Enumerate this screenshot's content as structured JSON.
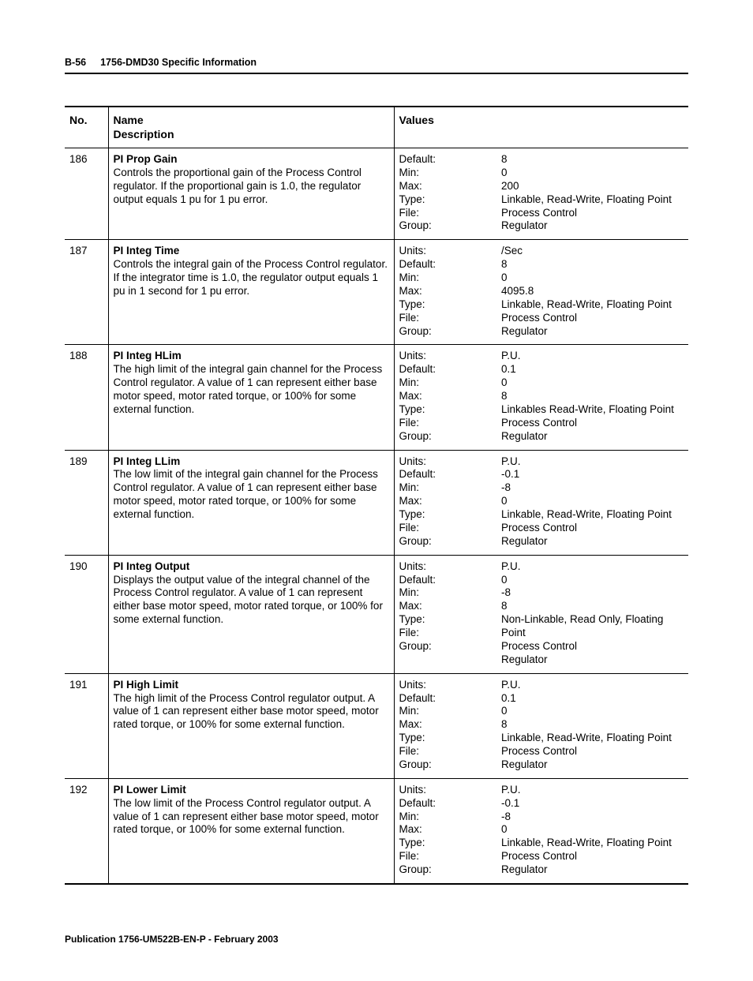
{
  "header": {
    "page_ref": "B-56",
    "section_title": "1756-DMD30 Specific Information"
  },
  "table": {
    "columns": {
      "no": "No.",
      "name": "Name",
      "name_sub": "Description",
      "values": "Values"
    },
    "rows": [
      {
        "no": "186",
        "name": "PI Prop Gain",
        "desc": "Controls the proportional gain of the Process Control regulator. If the proportional gain is 1.0, the regulator output equals 1 pu for 1 pu error.",
        "kv": [
          [
            "Default:",
            "8"
          ],
          [
            "Min:",
            "0"
          ],
          [
            "Max:",
            "200"
          ],
          [
            "Type:",
            "Linkable, Read-Write,  Floating Point"
          ],
          [
            "File:",
            "Process Control"
          ],
          [
            "Group:",
            "Regulator"
          ]
        ]
      },
      {
        "no": "187",
        "name": "PI Integ Time",
        "desc": "Controls the integral gain of the Process Control regulator.  If the integrator time is 1.0, the regulator output equals 1 pu in 1 second for 1 pu error.",
        "kv": [
          [
            "Units:",
            "/Sec"
          ],
          [
            "Default:",
            "8"
          ],
          [
            "Min:",
            "0"
          ],
          [
            "Max:",
            "4095.8"
          ],
          [
            "Type:",
            "Linkable, Read-Write,  Floating Point"
          ],
          [
            "File:",
            "Process Control"
          ],
          [
            "Group:",
            "Regulator"
          ]
        ]
      },
      {
        "no": "188",
        "name": "PI Integ HLim",
        "desc": "The high limit of the integral gain channel for the Process Control regulator.  A value of 1 can represent either base motor speed, motor rated torque, or 100% for some external function.",
        "kv": [
          [
            "Units:",
            "P.U."
          ],
          [
            "Default:",
            "0.1"
          ],
          [
            "Min:",
            "0"
          ],
          [
            "Max:",
            "8"
          ],
          [
            "Type:",
            "Linkables Read-Write,  Floating Point"
          ],
          [
            "File:",
            "Process Control"
          ],
          [
            "Group:",
            "Regulator"
          ]
        ]
      },
      {
        "no": "189",
        "name": "PI Integ LLim",
        "desc": "The low limit of the integral gain channel for the Process Control regulator.  A value of 1 can represent either base motor speed, motor rated torque, or 100% for some external function.",
        "kv": [
          [
            "Units:",
            "P.U."
          ],
          [
            "Default:",
            "-0.1"
          ],
          [
            "Min:",
            "-8"
          ],
          [
            "Max:",
            "0"
          ],
          [
            "Type:",
            "Linkable, Read-Write,  Floating Point"
          ],
          [
            "File:",
            "Process Control"
          ],
          [
            "Group:",
            "Regulator"
          ]
        ]
      },
      {
        "no": "190",
        "name": "PI Integ Output",
        "desc": "Displays the output value of the integral channel of the Process Control regulator.  A value of 1 can represent either base motor speed, motor rated torque, or 100% for some external function.",
        "kv": [
          [
            "Units:",
            "P.U."
          ],
          [
            "Default:",
            "0"
          ],
          [
            "Min:",
            "-8"
          ],
          [
            "Max:",
            "8"
          ],
          [
            "Type:",
            "Non-Linkable, Read Only, Floating Point"
          ],
          [
            "File:",
            "Process Control"
          ],
          [
            "Group:",
            "Regulator"
          ]
        ]
      },
      {
        "no": "191",
        "name": "PI High Limit",
        "desc": "The high limit of the Process Control regulator output. A value of 1 can represent either base motor speed, motor rated torque, or 100% for some external function.",
        "kv": [
          [
            "Units:",
            "P.U."
          ],
          [
            "Default:",
            "0.1"
          ],
          [
            "Min:",
            "0"
          ],
          [
            "Max:",
            "8"
          ],
          [
            "Type:",
            "Linkable, Read-Write,  Floating Point"
          ],
          [
            "File:",
            "Process Control"
          ],
          [
            "Group:",
            "Regulator"
          ]
        ]
      },
      {
        "no": "192",
        "name": "PI Lower Limit",
        "desc": "The low limit of the Process Control regulator output.  A value of 1 can represent either base motor speed, motor rated torque, or 100% for some external function.",
        "kv": [
          [
            "Units:",
            "P.U."
          ],
          [
            "Default:",
            "-0.1"
          ],
          [
            "Min:",
            "-8"
          ],
          [
            "Max:",
            "0"
          ],
          [
            "Type:",
            "Linkable, Read-Write,  Floating Point"
          ],
          [
            "File:",
            "Process Control"
          ],
          [
            "Group:",
            "Regulator"
          ]
        ]
      }
    ]
  },
  "footer": {
    "publication": "Publication 1756-UM522B-EN-P - February 2003"
  },
  "style": {
    "text_color": "#000000",
    "background_color": "#ffffff",
    "rule_thick": "2px",
    "rule_thin": "1px",
    "body_fontsize": 13.5,
    "header_fontsize": 12.5,
    "th_fontsize": 14
  }
}
